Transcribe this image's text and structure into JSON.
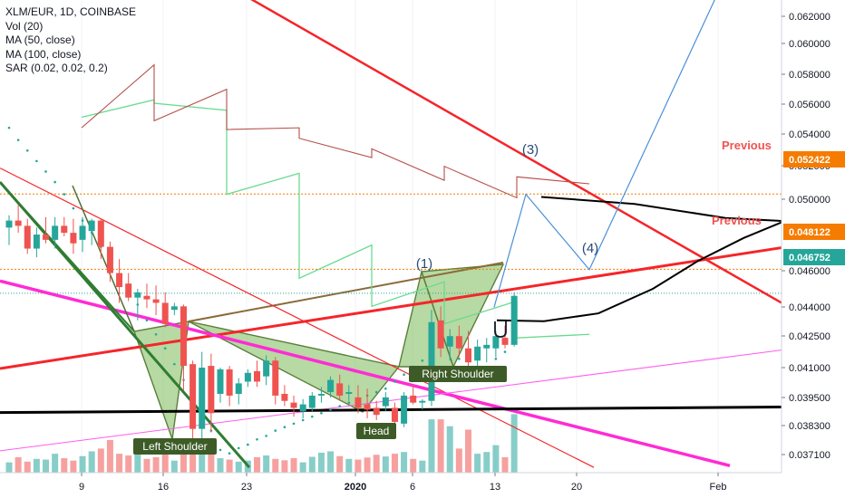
{
  "legend": {
    "title": "XLM/EUR, 1D, COINBASE",
    "vol": "Vol (20)",
    "ma50": "MA (50, close)",
    "ma100": "MA (100, close)",
    "sar": "SAR (0.02, 0.02, 0.2)"
  },
  "chart_data": {
    "type": "candlestick",
    "title": "XLM/EUR, 1D, COINBASE",
    "x_ticks": [
      "9",
      "16",
      "23",
      "2020",
      "6",
      "13",
      "20",
      "Feb"
    ],
    "y_ticks": [
      "0.062000",
      "0.060000",
      "0.058000",
      "0.056000",
      "0.054000",
      "0.052000",
      "0.050000",
      "0.046000",
      "0.044000",
      "0.042500",
      "0.041000",
      "0.039500",
      "0.038300",
      "0.037100"
    ],
    "ylim": [
      0.0365,
      0.0635
    ],
    "price_tags": [
      {
        "value": "0.052422",
        "color": "#f57c00"
      },
      {
        "value": "0.048122",
        "color": "#f57c00"
      },
      {
        "value": "0.046752",
        "color": "#26a69a"
      }
    ],
    "candles": [
      [
        0.0505,
        0.0512,
        0.0495,
        0.0509
      ],
      [
        0.0509,
        0.0518,
        0.0502,
        0.0506
      ],
      [
        0.0506,
        0.051,
        0.049,
        0.0493
      ],
      [
        0.0493,
        0.0505,
        0.0488,
        0.0501
      ],
      [
        0.0501,
        0.0511,
        0.0496,
        0.0498
      ],
      [
        0.0498,
        0.0511,
        0.0493,
        0.0506
      ],
      [
        0.0506,
        0.0511,
        0.05,
        0.0502
      ],
      [
        0.0502,
        0.051,
        0.049,
        0.0496
      ],
      [
        0.0498,
        0.0511,
        0.0491,
        0.0506
      ],
      [
        0.0503,
        0.051,
        0.0495,
        0.0509
      ],
      [
        0.0509,
        0.051,
        0.0487,
        0.0494
      ],
      [
        0.0494,
        0.0497,
        0.0474,
        0.0479
      ],
      [
        0.0479,
        0.0487,
        0.0462,
        0.0471
      ],
      [
        0.0473,
        0.0479,
        0.0463,
        0.0465
      ],
      [
        0.0465,
        0.047,
        0.0452,
        0.0468
      ],
      [
        0.0466,
        0.0473,
        0.0459,
        0.0464
      ],
      [
        0.0464,
        0.0472,
        0.0455,
        0.0462
      ],
      [
        0.0462,
        0.0468,
        0.0448,
        0.045
      ],
      [
        0.0458,
        0.0462,
        0.0455,
        0.046
      ],
      [
        0.046,
        0.0461,
        0.0412,
        0.0426
      ],
      [
        0.0427,
        0.0429,
        0.0382,
        0.039
      ],
      [
        0.039,
        0.0434,
        0.0384,
        0.0425
      ],
      [
        0.0426,
        0.0433,
        0.0388,
        0.0399
      ],
      [
        0.041,
        0.0425,
        0.0405,
        0.0424
      ],
      [
        0.0424,
        0.0426,
        0.0403,
        0.0409
      ],
      [
        0.041,
        0.0419,
        0.0404,
        0.0416
      ],
      [
        0.0417,
        0.0424,
        0.0414,
        0.0422
      ],
      [
        0.0423,
        0.0429,
        0.0414,
        0.0417
      ],
      [
        0.042,
        0.0432,
        0.0415,
        0.0429
      ],
      [
        0.0429,
        0.0431,
        0.0404,
        0.0409
      ],
      [
        0.041,
        0.0415,
        0.0403,
        0.0406
      ],
      [
        0.0405,
        0.0409,
        0.0397,
        0.0402
      ],
      [
        0.04,
        0.0407,
        0.0396,
        0.0404
      ],
      [
        0.0402,
        0.0411,
        0.04,
        0.0409
      ],
      [
        0.0409,
        0.0414,
        0.0405,
        0.041
      ],
      [
        0.0411,
        0.042,
        0.0408,
        0.0418
      ],
      [
        0.0416,
        0.0421,
        0.0406,
        0.0409
      ],
      [
        0.041,
        0.0415,
        0.0406,
        0.0411
      ],
      [
        0.0408,
        0.0415,
        0.0399,
        0.0402
      ],
      [
        0.0404,
        0.0413,
        0.0396,
        0.0401
      ],
      [
        0.0402,
        0.0406,
        0.0395,
        0.0398
      ],
      [
        0.0403,
        0.0411,
        0.04,
        0.0408
      ],
      [
        0.0402,
        0.0405,
        0.0393,
        0.0394
      ],
      [
        0.0393,
        0.0411,
        0.0391,
        0.0409
      ],
      [
        0.0409,
        0.0415,
        0.0404,
        0.0405
      ],
      [
        0.0405,
        0.0407,
        0.0401,
        0.0406
      ],
      [
        0.0406,
        0.0458,
        0.0403,
        0.0451
      ],
      [
        0.0452,
        0.046,
        0.0431,
        0.0436
      ],
      [
        0.0437,
        0.0447,
        0.0429,
        0.0443
      ],
      [
        0.0443,
        0.0449,
        0.0431,
        0.0436
      ],
      [
        0.0436,
        0.0446,
        0.0422,
        0.0428
      ],
      [
        0.0429,
        0.0441,
        0.0425,
        0.0437
      ],
      [
        0.0436,
        0.0442,
        0.0428,
        0.0438
      ],
      [
        0.0436,
        0.0446,
        0.0431,
        0.0443
      ],
      [
        0.0442,
        0.0449,
        0.0436,
        0.0438
      ],
      [
        0.0438,
        0.0468,
        0.0437,
        0.0466
      ]
    ],
    "volumes": [
      {
        "v": 0.3,
        "up": true
      },
      {
        "v": 0.45,
        "up": false
      },
      {
        "v": 0.32,
        "up": false
      },
      {
        "v": 0.4,
        "up": true
      },
      {
        "v": 0.38,
        "up": true
      },
      {
        "v": 0.55,
        "up": true
      },
      {
        "v": 0.42,
        "up": false
      },
      {
        "v": 0.35,
        "up": false
      },
      {
        "v": 0.48,
        "up": true
      },
      {
        "v": 0.62,
        "up": true
      },
      {
        "v": 0.7,
        "up": false
      },
      {
        "v": 0.95,
        "up": false
      },
      {
        "v": 0.55,
        "up": false
      },
      {
        "v": 0.5,
        "up": false
      },
      {
        "v": 0.75,
        "up": true
      },
      {
        "v": 0.4,
        "up": false
      },
      {
        "v": 0.45,
        "up": false
      },
      {
        "v": 0.55,
        "up": false
      },
      {
        "v": 0.35,
        "up": true
      },
      {
        "v": 0.82,
        "up": false
      },
      {
        "v": 1.0,
        "up": false
      },
      {
        "v": 0.78,
        "up": true
      },
      {
        "v": 0.7,
        "up": false
      },
      {
        "v": 0.42,
        "up": true
      },
      {
        "v": 0.38,
        "up": false
      },
      {
        "v": 0.32,
        "up": true
      },
      {
        "v": 0.35,
        "up": true
      },
      {
        "v": 0.45,
        "up": false
      },
      {
        "v": 0.5,
        "up": true
      },
      {
        "v": 0.4,
        "up": false
      },
      {
        "v": 0.36,
        "up": false
      },
      {
        "v": 0.42,
        "up": false
      },
      {
        "v": 0.3,
        "up": true
      },
      {
        "v": 0.46,
        "up": true
      },
      {
        "v": 0.58,
        "up": true
      },
      {
        "v": 0.62,
        "up": true
      },
      {
        "v": 0.48,
        "up": false
      },
      {
        "v": 0.4,
        "up": true
      },
      {
        "v": 0.38,
        "up": false
      },
      {
        "v": 0.44,
        "up": false
      },
      {
        "v": 0.52,
        "up": false
      },
      {
        "v": 0.47,
        "up": true
      },
      {
        "v": 0.55,
        "up": false
      },
      {
        "v": 0.6,
        "up": true
      },
      {
        "v": 0.4,
        "up": false
      },
      {
        "v": 0.35,
        "up": true
      },
      {
        "v": 1.55,
        "up": true
      },
      {
        "v": 1.55,
        "up": false
      },
      {
        "v": 1.35,
        "up": true
      },
      {
        "v": 0.7,
        "up": false
      },
      {
        "v": 1.25,
        "up": false
      },
      {
        "v": 0.55,
        "up": true
      },
      {
        "v": 0.6,
        "up": true
      },
      {
        "v": 0.8,
        "up": true
      },
      {
        "v": 0.45,
        "up": false
      },
      {
        "v": 1.7,
        "up": true
      }
    ],
    "ma50": [
      [
        0.0568,
        0.0578
      ],
      [
        0.0576,
        0.0572
      ],
      [
        0.0524,
        0.0536
      ],
      [
        0.0476,
        0.0495
      ],
      [
        0.046,
        0.0474
      ],
      [
        0.045,
        0.0463
      ],
      [
        0.0442,
        0.0444
      ]
    ],
    "ma100": [
      [
        0.0562,
        0.0598
      ],
      [
        0.0566,
        0.0584
      ],
      [
        0.0561,
        0.0562
      ],
      [
        0.0556,
        0.0545
      ],
      [
        0.055,
        0.0532
      ],
      [
        0.054,
        0.0522
      ],
      [
        0.0534,
        0.053
      ]
    ],
    "sar": [
      0.0562,
      0.0555,
      0.0549,
      0.0543,
      0.0537,
      0.0531,
      0.0524,
      0.0516,
      0.0509,
      0.0502,
      0.0494,
      0.0486,
      0.0478,
      0.0469,
      0.0461,
      0.0452,
      0.0444,
      0.0436,
      0.0427,
      0.0418,
      0.0409,
      0.0399,
      0.0389,
      0.0378,
      0.0376,
      0.0379,
      0.0381,
      0.0384,
      0.0386,
      0.0389,
      0.0391,
      0.0393,
      0.0395,
      0.0397,
      0.0399,
      0.0401,
      0.0403,
      0.0405,
      0.0407,
      0.0409,
      0.0411,
      0.0413,
      0.0417,
      0.0421,
      0.0425,
      0.0429,
      0.0433,
      0.0437,
      0.044,
      0.043,
      0.0425,
      0.042,
      0.0425,
      0.043,
      0.0434
    ],
    "annotations": {
      "left_shoulder": "Left Shoulder",
      "head": "Head",
      "right_shoulder": "Right Shoulder",
      "point1": "(1)",
      "point3": "(3)",
      "point4": "(4)",
      "previous1": "Previous",
      "previous2": "Previous"
    },
    "trendlines": [
      {
        "name": "red-neckline",
        "color": "#f5252a",
        "points": [
          [
            0,
            0.04245
          ],
          [
            862,
            0.04935
          ]
        ]
      },
      {
        "name": "red-downtrend-upper",
        "color": "#f5252a",
        "points": [
          [
            218,
            0.0653
          ],
          [
            862,
            0.0462
          ]
        ]
      },
      {
        "name": "red-downtrend-lower",
        "color": "#f5252a",
        "points": [
          [
            0,
            0.0539
          ],
          [
            655,
            0.0368
          ]
        ]
      },
      {
        "name": "magenta-upper",
        "color": "#ff2bd5",
        "points": [
          [
            0,
            0.04745
          ],
          [
            805,
            0.0369
          ]
        ]
      },
      {
        "name": "magenta-lower",
        "color": "#ff5cf0",
        "points": [
          [
            0,
            0.03775
          ],
          [
            862,
            0.0435
          ]
        ]
      },
      {
        "name": "black-support",
        "color": "#000000",
        "points": [
          [
            0,
            0.03993
          ],
          [
            862,
            0.04025
          ]
        ]
      },
      {
        "name": "green-steep",
        "color": "#2e7d32",
        "points": [
          [
            0,
            0.0531
          ],
          [
            275,
            0.0368
          ]
        ]
      }
    ],
    "projection_path": [
      [
        545,
        0.04595
      ],
      [
        580,
        0.0524
      ],
      [
        650,
        0.0481
      ],
      [
        790,
        0.0637
      ]
    ],
    "black_curve": [
      [
        548,
        0.0452
      ],
      [
        600,
        0.04515
      ],
      [
        660,
        0.0456
      ],
      [
        720,
        0.047
      ],
      [
        770,
        0.0486
      ],
      [
        820,
        0.0499
      ],
      [
        862,
        0.0508
      ]
    ],
    "black_curve_top": [
      [
        597,
        0.05225
      ],
      [
        700,
        0.05185
      ],
      [
        800,
        0.05105
      ],
      [
        862,
        0.05088
      ]
    ],
    "orange_levels": [
      0.05242,
      0.04812
    ],
    "teal_level": 0.04675
  }
}
